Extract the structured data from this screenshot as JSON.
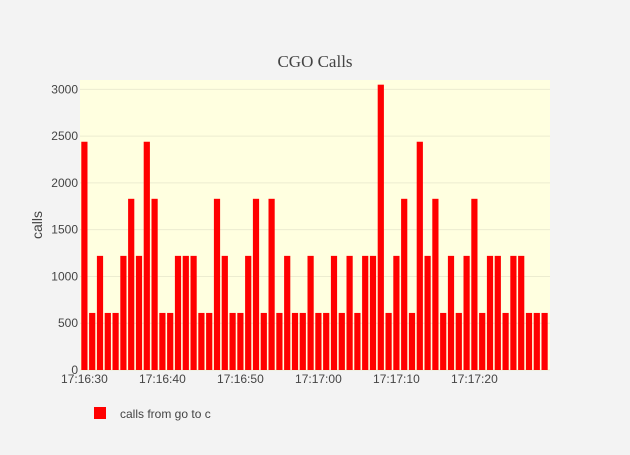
{
  "chart_data": {
    "type": "bar",
    "title": "CGO Calls",
    "xlabel": "",
    "ylabel": "calls",
    "ylim": [
      0,
      3100
    ],
    "y_ticks": [
      0,
      500,
      1000,
      1500,
      2000,
      2500,
      3000
    ],
    "x_tick_labels": [
      "17:16:30",
      "17:16:40",
      "17:16:50",
      "17:17:00",
      "17:17:10",
      "17:17:20"
    ],
    "x_start": "17:16:30",
    "x_step_seconds": 1,
    "grid": true,
    "legend_position": "bottom-left",
    "series": [
      {
        "name": "calls from go to c",
        "color": "#ff0000",
        "values": [
          2440,
          610,
          1220,
          610,
          610,
          1220,
          1830,
          1220,
          2440,
          1830,
          610,
          610,
          1220,
          1220,
          1220,
          610,
          610,
          1830,
          1220,
          610,
          610,
          1220,
          1830,
          610,
          1830,
          610,
          1220,
          610,
          610,
          1220,
          610,
          610,
          1220,
          610,
          1220,
          610,
          1220,
          1220,
          3050,
          610,
          1220,
          1830,
          610,
          2440,
          1220,
          1830,
          610,
          1220,
          610,
          1220,
          1830,
          610,
          1220,
          1220,
          610,
          1220,
          1220,
          610,
          610,
          610
        ]
      }
    ],
    "colors": {
      "background": "#f3f3f3",
      "plot_background": "#ffffe0"
    }
  }
}
